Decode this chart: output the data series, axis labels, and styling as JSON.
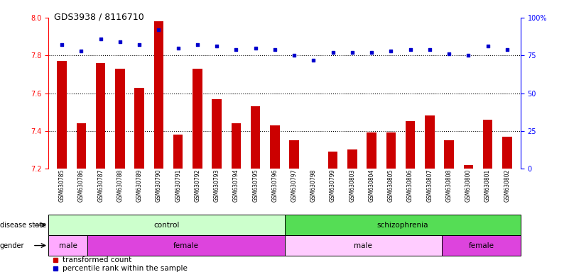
{
  "title": "GDS3938 / 8116710",
  "samples": [
    "GSM630785",
    "GSM630786",
    "GSM630787",
    "GSM630788",
    "GSM630789",
    "GSM630790",
    "GSM630791",
    "GSM630792",
    "GSM630793",
    "GSM630794",
    "GSM630795",
    "GSM630796",
    "GSM630797",
    "GSM630798",
    "GSM630799",
    "GSM630803",
    "GSM630804",
    "GSM630805",
    "GSM630806",
    "GSM630807",
    "GSM630808",
    "GSM630800",
    "GSM630801",
    "GSM630802"
  ],
  "bar_values": [
    7.77,
    7.44,
    7.76,
    7.73,
    7.63,
    7.98,
    7.38,
    7.73,
    7.57,
    7.44,
    7.53,
    7.43,
    7.35,
    7.2,
    7.29,
    7.3,
    7.39,
    7.39,
    7.45,
    7.48,
    7.35,
    7.22,
    7.46,
    7.37
  ],
  "percentile_values": [
    82,
    78,
    86,
    84,
    82,
    92,
    80,
    82,
    81,
    79,
    80,
    79,
    75,
    72,
    77,
    77,
    77,
    78,
    79,
    79,
    76,
    75,
    81,
    79
  ],
  "bar_color": "#cc0000",
  "dot_color": "#0000cc",
  "ylim_left": [
    7.2,
    8.0
  ],
  "ylim_right": [
    0,
    100
  ],
  "yticks_left": [
    7.2,
    7.4,
    7.6,
    7.8,
    8.0
  ],
  "yticks_right": [
    0,
    25,
    50,
    75,
    100
  ],
  "ytick_labels_right": [
    "0",
    "25",
    "50",
    "75",
    "100%"
  ],
  "grid_lines": [
    7.4,
    7.6,
    7.8
  ],
  "disease_state_groups": [
    {
      "label": "control",
      "start": 0,
      "end": 11,
      "color": "#ccffcc"
    },
    {
      "label": "schizophrenia",
      "start": 12,
      "end": 23,
      "color": "#55dd55"
    }
  ],
  "gender_groups": [
    {
      "label": "male",
      "start": 0,
      "end": 1,
      "color": "#ffaaff"
    },
    {
      "label": "female",
      "start": 2,
      "end": 11,
      "color": "#dd44dd"
    },
    {
      "label": "male",
      "start": 12,
      "end": 19,
      "color": "#ffccff"
    },
    {
      "label": "female",
      "start": 20,
      "end": 23,
      "color": "#dd44dd"
    }
  ],
  "bar_bottom": 7.2,
  "bar_width": 0.5,
  "background_color": "#ffffff"
}
